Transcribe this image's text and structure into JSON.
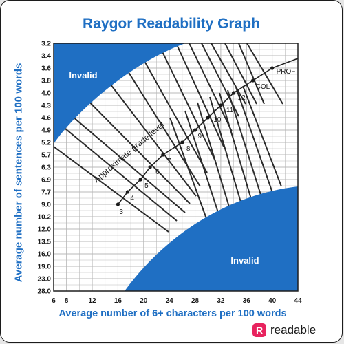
{
  "page": {
    "title": "Raygor Readability Graph",
    "brand": {
      "icon_letter": "R",
      "name": "readable",
      "color": "#e8235e"
    }
  },
  "chart_data": {
    "type": "scatter",
    "title": "Raygor Readability Graph",
    "xlabel": "Average number of 6+ characters per 100 words",
    "ylabel": "Average number of sentences per 100 words",
    "x_ticks": [
      6,
      8,
      12,
      16,
      20,
      24,
      28,
      32,
      36,
      40,
      44
    ],
    "y_ticks": [
      "3.2",
      "3.4",
      "3.6",
      "3.8",
      "4.0",
      "4.3",
      "4.6",
      "4.9",
      "5.2",
      "5.7",
      "6.3",
      "6.9",
      "7.7",
      "9.0",
      "10.2",
      "12.0",
      "13.5",
      "16.0",
      "19.0",
      "23.0",
      "28.0"
    ],
    "xlim": [
      6,
      44
    ],
    "grid": true,
    "regions": [
      "Invalid",
      "Invalid"
    ],
    "curve_label": "Approximate grade level",
    "grade_points": [
      {
        "label": "3",
        "x": 16,
        "y": "9.0"
      },
      {
        "label": "4",
        "x": 17.5,
        "y": "7.7"
      },
      {
        "label": "5",
        "x": 19.5,
        "y": "6.9"
      },
      {
        "label": "6",
        "x": 21,
        "y": "6.3"
      },
      {
        "label": "7",
        "x": 23,
        "y": "5.7"
      },
      {
        "label": "8",
        "x": 26,
        "y": "5.2"
      },
      {
        "label": "9",
        "x": 28,
        "y": "4.9"
      },
      {
        "label": "10",
        "x": 30,
        "y": "4.6"
      },
      {
        "label": "11",
        "x": 32,
        "y": "4.3"
      },
      {
        "label": "12",
        "x": 34,
        "y": "4.0"
      },
      {
        "label": "COL",
        "x": 37,
        "y": "3.8"
      },
      {
        "label": "PROF",
        "x": 40,
        "y": "3.6"
      }
    ],
    "colors": {
      "region": "#1f6fc3",
      "grid": "#b8b8b8",
      "line": "#222222",
      "text": "#1f6fc3"
    }
  }
}
